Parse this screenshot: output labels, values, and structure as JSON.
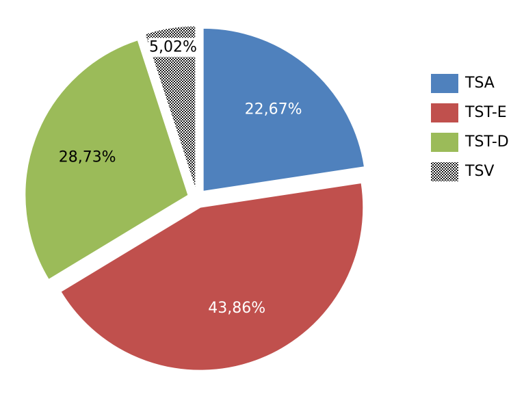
{
  "chart_data": {
    "type": "pie",
    "categories": [
      "TSA",
      "TST-E",
      "TST-D",
      "TSV"
    ],
    "values": [
      22.67,
      43.86,
      28.73,
      5.02
    ],
    "value_labels": [
      "22,67%",
      "43,86%",
      "28,73%",
      "5,02%"
    ],
    "colors": [
      "#4f81bd",
      "#c0504d",
      "#9bbb59",
      "#1a1a1a"
    ],
    "hatch": [
      false,
      false,
      false,
      true
    ],
    "label_colors": [
      "#ffffff",
      "#ffffff",
      "#000000",
      "#000000"
    ],
    "legend": "right"
  }
}
